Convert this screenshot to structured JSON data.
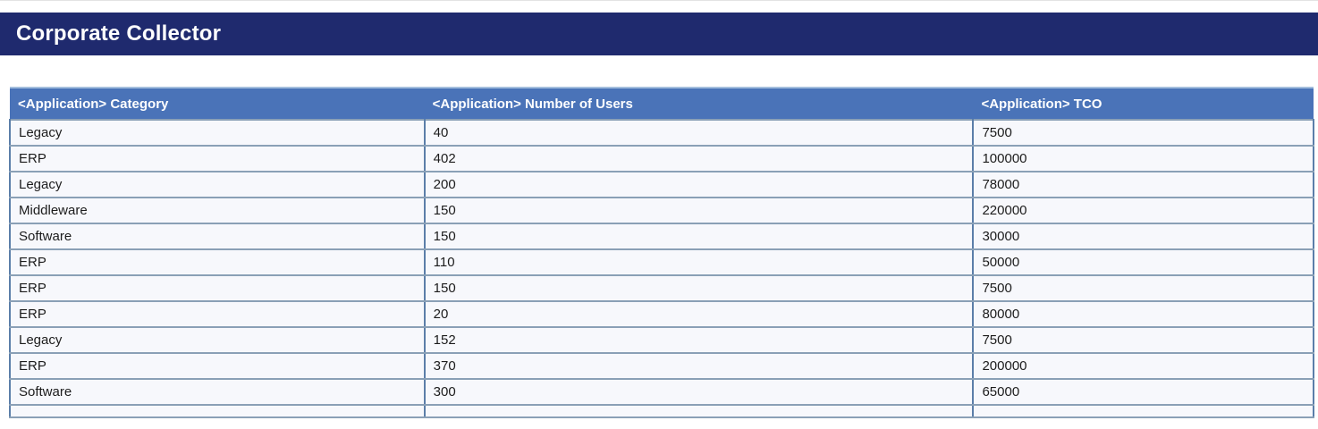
{
  "page": {
    "title": "Corporate Collector"
  },
  "colors": {
    "title_bar_bg": "#1f2a6e",
    "table_header_bg": "#4a73b8",
    "row_bg": "#f7f8fc",
    "grid_line_horizontal": "#8aa0b6",
    "grid_line_vertical": "#5b7ea9",
    "header_text": "#ffffff",
    "cell_text": "#1c1c1c"
  },
  "table": {
    "columns": [
      "<Application> Category",
      "<Application> Number of Users",
      "<Application> TCO"
    ],
    "column_widths_percent": [
      31.8,
      42.1,
      26.1
    ],
    "rows": [
      {
        "category": "Legacy",
        "number_of_users": "40",
        "tco": "7500"
      },
      {
        "category": "ERP",
        "number_of_users": "402",
        "tco": "100000"
      },
      {
        "category": "Legacy",
        "number_of_users": "200",
        "tco": "78000"
      },
      {
        "category": "Middleware",
        "number_of_users": "150",
        "tco": "220000"
      },
      {
        "category": "Software",
        "number_of_users": "150",
        "tco": "30000"
      },
      {
        "category": "ERP",
        "number_of_users": "110",
        "tco": "50000"
      },
      {
        "category": "ERP",
        "number_of_users": "150",
        "tco": "7500"
      },
      {
        "category": "ERP",
        "number_of_users": "20",
        "tco": "80000"
      },
      {
        "category": "Legacy",
        "number_of_users": "152",
        "tco": "7500"
      },
      {
        "category": "ERP",
        "number_of_users": "370",
        "tco": "200000"
      },
      {
        "category": "Software",
        "number_of_users": "300",
        "tco": "65000"
      }
    ]
  }
}
